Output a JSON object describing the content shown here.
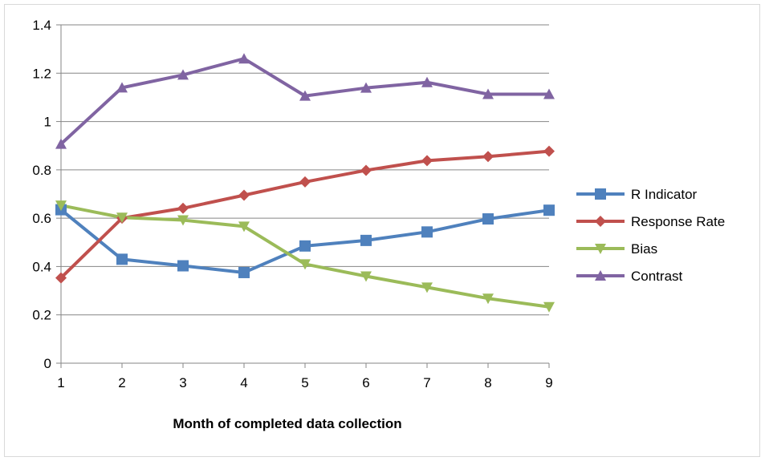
{
  "chart_data": {
    "type": "line",
    "title": "",
    "xlabel": "Month of completed data collection",
    "ylabel": "",
    "categories": [
      "1",
      "2",
      "3",
      "4",
      "5",
      "6",
      "7",
      "8",
      "9"
    ],
    "ylim": [
      0,
      1.4
    ],
    "yticks": [
      "0",
      "0.2",
      "0.4",
      "0.6",
      "0.8",
      "1",
      "1.2",
      "1.4"
    ],
    "grid": true,
    "legend": "right",
    "series": [
      {
        "name": "R Indicator",
        "color": "#4f81bd",
        "marker": "square",
        "values": [
          0.635,
          0.43,
          0.403,
          0.375,
          0.485,
          0.508,
          0.543,
          0.597,
          0.633
        ]
      },
      {
        "name": "Response Rate",
        "color": "#c0504d",
        "marker": "diamond",
        "values": [
          0.353,
          0.6,
          0.641,
          0.695,
          0.75,
          0.798,
          0.838,
          0.855,
          0.877
        ]
      },
      {
        "name": "Bias",
        "color": "#9bbb59",
        "marker": "triangle-down",
        "values": [
          0.653,
          0.603,
          0.592,
          0.566,
          0.41,
          0.36,
          0.314,
          0.268,
          0.233
        ]
      },
      {
        "name": "Contrast",
        "color": "#8064a2",
        "marker": "triangle-up",
        "values": [
          0.907,
          1.14,
          1.193,
          1.26,
          1.106,
          1.139,
          1.162,
          1.113,
          1.113
        ]
      }
    ]
  }
}
